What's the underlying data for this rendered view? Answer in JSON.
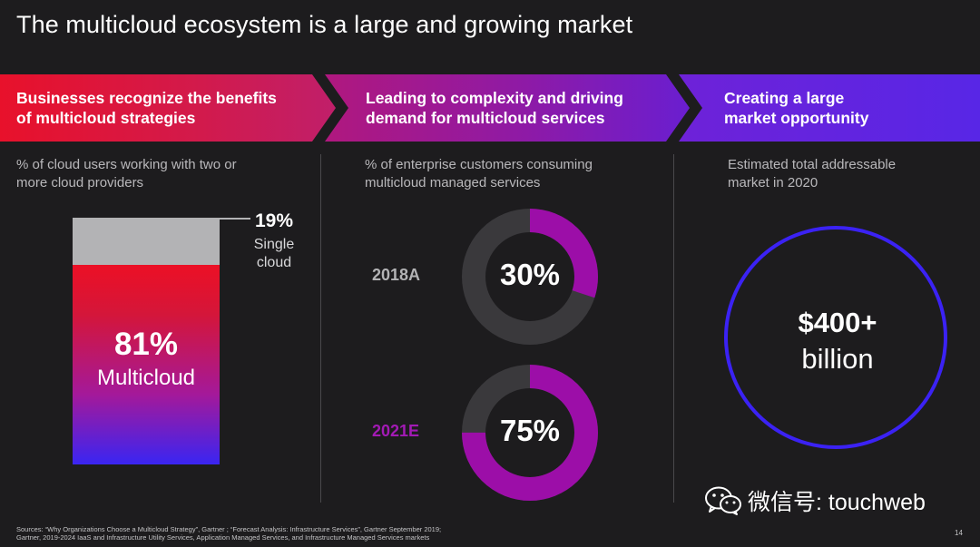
{
  "slide": {
    "title": "The multicloud ecosystem is a large and growing market",
    "page_number": "14"
  },
  "banner": {
    "step1": "Businesses recognize the benefits\nof multicloud strategies",
    "step2": "Leading to complexity and driving\ndemand for multicloud services",
    "step3": "Creating a large\nmarket opportunity"
  },
  "col1": {
    "subtitle": "% of cloud users working with two or\nmore cloud providers",
    "single_pct": "19%",
    "single_label": "Single\ncloud",
    "multi_pct": "81%",
    "multi_label": "Multicloud",
    "single_value": 19,
    "multi_value": 81
  },
  "col2": {
    "subtitle": "% of enterprise customers consuming\nmulticloud managed services",
    "donuts": [
      {
        "year": "2018A",
        "pct": "30%",
        "value": 30
      },
      {
        "year": "2021E",
        "pct": "75%",
        "value": 75
      }
    ]
  },
  "col3": {
    "subtitle": "Estimated total addressable\nmarket in 2020",
    "value": "$400+",
    "unit": "billion"
  },
  "watermark": {
    "text": "微信号: touchweb",
    "icon": "wechat-icon"
  },
  "sources": "Sources: “Why Organizations Choose a Multicloud Strategy”, Gartner ; “Forecast Analysis: Infrastructure Services”, Gartner September 2019;\nGartner, 2019-2024  IaaS and Infrastructure Utility Services, Application Managed Services, and Infrastructure Managed Services markets",
  "colors": {
    "background": "#1d1c1e",
    "red": "#ec1025",
    "purple": "#9c0ea8",
    "blue": "#3b22f4",
    "gray": "#b3b3b5",
    "donut_track": "#3a393c"
  }
}
